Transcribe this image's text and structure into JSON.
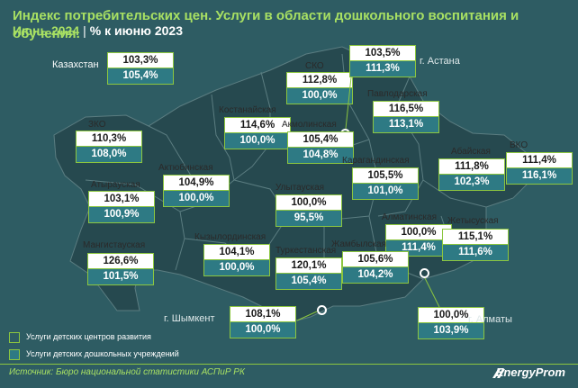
{
  "header": {
    "title": "Индекс потребительских цен. Услуги в области дошкольного воспитания и обучения.",
    "period": "Июнь 2024",
    "separator": "|",
    "unit": "% к июню 2023"
  },
  "colors": {
    "background": "#2e5c63",
    "accent_green": "#a8e063",
    "box_border": "#8cc63f",
    "second_row": "#2e7a84"
  },
  "country": {
    "label": "Казахстан",
    "dev_centers": "103,3%",
    "preschool": "105,4%"
  },
  "regions": {
    "sko": {
      "label": "СКО",
      "dev_centers": "112,8%",
      "preschool": "100,0%"
    },
    "astana": {
      "label": "г. Астана",
      "dev_centers": "103,5%",
      "preschool": "111,3%"
    },
    "pavlodar": {
      "label": "Павлодарская",
      "dev_centers": "116,5%",
      "preschool": "113,1%"
    },
    "kostanay": {
      "label": "Костанайская",
      "dev_centers": "114,6%",
      "preschool": "100,0%"
    },
    "akmola": {
      "label": "Акмолинская",
      "dev_centers": "105,4%",
      "preschool": "104,8%"
    },
    "zko": {
      "label": "ЗКО",
      "dev_centers": "110,3%",
      "preschool": "108,0%"
    },
    "aktobe": {
      "label": "Актюбинская",
      "dev_centers": "104,9%",
      "preschool": "100,0%"
    },
    "karaganda": {
      "label": "Карагандинская",
      "dev_centers": "105,5%",
      "preschool": "101,0%"
    },
    "abay": {
      "label": "Абайская",
      "dev_centers": "111,8%",
      "preschool": "102,3%"
    },
    "vko": {
      "label": "ВКО",
      "dev_centers": "111,4%",
      "preschool": "116,1%"
    },
    "atyrau": {
      "label": "Атырауская",
      "dev_centers": "103,1%",
      "preschool": "100,9%"
    },
    "ulytau": {
      "label": "Улытауская",
      "dev_centers": "100,0%",
      "preschool": "95,5%"
    },
    "almaty_obl": {
      "label": "Алматинская",
      "dev_centers": "100,0%",
      "preschool": "111,4%"
    },
    "zhetysu": {
      "label": "Жетысуская",
      "dev_centers": "115,1%",
      "preschool": "111,6%"
    },
    "kyzylorda": {
      "label": "Кызылординская",
      "dev_centers": "104,1%",
      "preschool": "100,0%"
    },
    "mangystau": {
      "label": "Мангистауская",
      "dev_centers": "126,6%",
      "preschool": "101,5%"
    },
    "turkestan": {
      "label": "Туркестанская",
      "dev_centers": "120,1%",
      "preschool": "105,4%"
    },
    "zhambyl": {
      "label": "Жамбылская",
      "dev_centers": "105,6%",
      "preschool": "104,2%"
    },
    "shymkent": {
      "label": "г. Шымкент",
      "dev_centers": "108,1%",
      "preschool": "100,0%"
    },
    "almaty_city": {
      "label": "г. Алматы",
      "dev_centers": "100,0%",
      "preschool": "103,9%"
    }
  },
  "legend": {
    "dev_centers": "Услуги детских центров развития",
    "preschool": "Услуги детских дошкольных учреждений"
  },
  "footer": {
    "source": "Источник: Бюро национальной статистики АСПиР РК",
    "brand": "EnergyProm"
  }
}
